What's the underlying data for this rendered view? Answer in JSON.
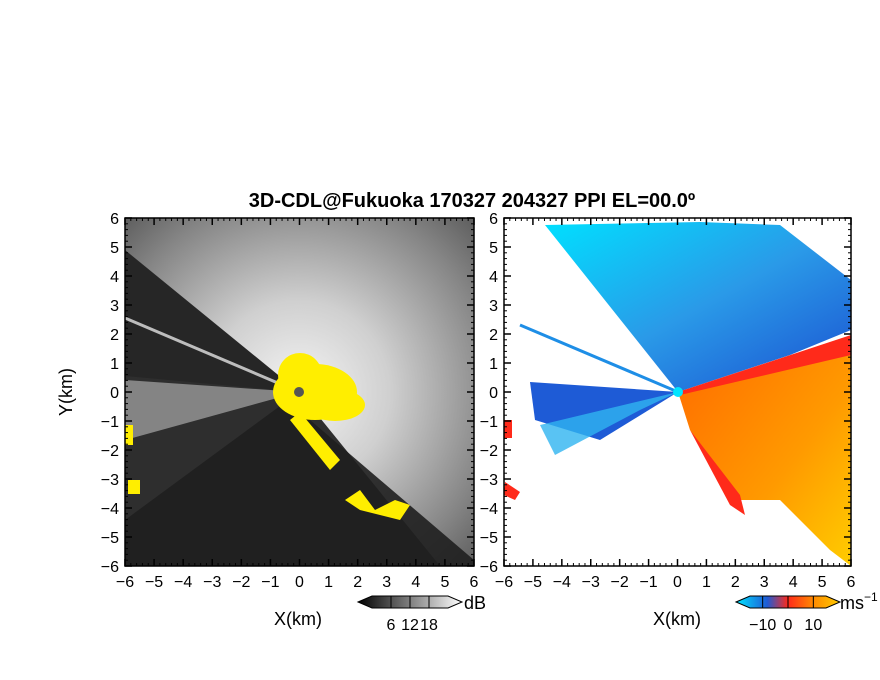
{
  "chart_data": [
    {
      "type": "heatmap",
      "title": "3D-CDL@Fukuoka 170327 204327 PPI EL=00.0º",
      "panel": "reflectivity",
      "xlabel": "X(km)",
      "ylabel": "Y(km)",
      "xlim": [
        -6,
        6
      ],
      "ylim": [
        -6,
        6
      ],
      "xticks": [
        "−6",
        "−5",
        "−4",
        "−3",
        "−2",
        "−1",
        "0",
        "1",
        "2",
        "3",
        "4",
        "5",
        "6"
      ],
      "yticks": [
        "6",
        "5",
        "4",
        "3",
        "2",
        "1",
        "0",
        "−1",
        "−2",
        "−3",
        "−4",
        "−5",
        "−6"
      ],
      "colorbar": {
        "unit": "dB",
        "ticks": [
          "6",
          "12",
          "18"
        ],
        "range": [
          0,
          24
        ]
      },
      "colors": {
        "background": "#2b2b2b",
        "low": "#000000",
        "high": "#ffffff",
        "overflow": "#ffee00"
      }
    },
    {
      "type": "heatmap",
      "panel": "doppler-velocity",
      "xlabel": "X(km)",
      "xlim": [
        -6,
        6
      ],
      "ylim": [
        -6,
        6
      ],
      "xticks": [
        "−6",
        "−5",
        "−4",
        "−3",
        "−2",
        "−1",
        "0",
        "1",
        "2",
        "3",
        "4",
        "5",
        "6"
      ],
      "yticks": [
        "6",
        "5",
        "4",
        "3",
        "2",
        "1",
        "0",
        "−1",
        "−2",
        "−3",
        "−4",
        "−5",
        "−6"
      ],
      "colorbar": {
        "unit": "ms",
        "unit_exp": "−1",
        "ticks": [
          "−10",
          "0",
          "10"
        ],
        "range": [
          -15,
          15
        ]
      },
      "colors": {
        "negative_far": "#00e5ff",
        "negative": "#1e5bd6",
        "zero": "#ff2a1a",
        "positive": "#ff8c00",
        "positive_far": "#ffcc00"
      }
    }
  ]
}
